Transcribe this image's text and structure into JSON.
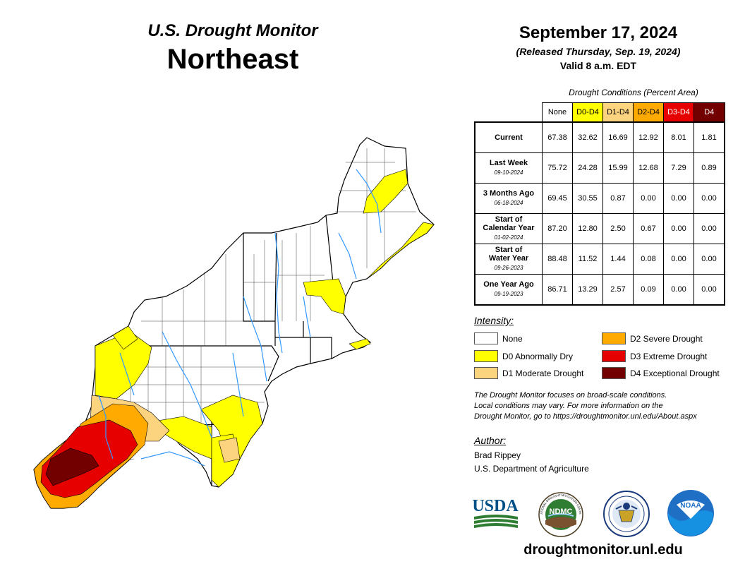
{
  "header": {
    "subtitle": "U.S. Drought Monitor",
    "title": "Northeast"
  },
  "date_block": {
    "date": "September 17, 2024",
    "released": "(Released Thursday, Sep. 19, 2024)",
    "valid": "Valid 8 a.m. EDT"
  },
  "stats_table": {
    "caption": "Drought Conditions (Percent Area)",
    "columns": [
      {
        "label": "None",
        "color": "#ffffff",
        "text_color": "#000000"
      },
      {
        "label": "D0-D4",
        "color": "#ffff00",
        "text_color": "#000000"
      },
      {
        "label": "D1-D4",
        "color": "#fcd37f",
        "text_color": "#000000"
      },
      {
        "label": "D2-D4",
        "color": "#ffaa00",
        "text_color": "#000000"
      },
      {
        "label": "D3-D4",
        "color": "#e60000",
        "text_color": "#ffffff"
      },
      {
        "label": "D4",
        "color": "#730000",
        "text_color": "#ffffff"
      }
    ],
    "rows": [
      {
        "label": "Current",
        "label2": "",
        "date": "",
        "values": [
          "67.38",
          "32.62",
          "16.69",
          "12.92",
          "8.01",
          "1.81"
        ]
      },
      {
        "label": "Last Week",
        "label2": "",
        "date": "09-10-2024",
        "values": [
          "75.72",
          "24.28",
          "15.99",
          "12.68",
          "7.29",
          "0.89"
        ]
      },
      {
        "label": "3 Months Ago",
        "label2": "",
        "date": "06-18-2024",
        "values": [
          "69.45",
          "30.55",
          "0.87",
          "0.00",
          "0.00",
          "0.00"
        ]
      },
      {
        "label": "Start of",
        "label2": "Calendar Year",
        "date": "01-02-2024",
        "values": [
          "87.20",
          "12.80",
          "2.50",
          "0.67",
          "0.00",
          "0.00"
        ]
      },
      {
        "label": "Start of",
        "label2": "Water Year",
        "date": "09-26-2023",
        "values": [
          "88.48",
          "11.52",
          "1.44",
          "0.08",
          "0.00",
          "0.00"
        ]
      },
      {
        "label": "One Year Ago",
        "label2": "",
        "date": "09-19-2023",
        "values": [
          "86.71",
          "13.29",
          "2.57",
          "0.09",
          "0.00",
          "0.00"
        ]
      }
    ]
  },
  "legend": {
    "title": "Intensity:",
    "items": [
      {
        "label": "None",
        "color": "#ffffff"
      },
      {
        "label": "D0 Abnormally Dry",
        "color": "#ffff00"
      },
      {
        "label": "D1 Moderate Drought",
        "color": "#fcd37f"
      },
      {
        "label": "D2 Severe Drought",
        "color": "#ffaa00"
      },
      {
        "label": "D3 Extreme Drought",
        "color": "#e60000"
      },
      {
        "label": "D4 Exceptional Drought",
        "color": "#730000"
      }
    ]
  },
  "note": {
    "line1": "The Drought Monitor focuses on broad-scale conditions.",
    "line2": "Local conditions may vary. For more information on the",
    "line3": "Drought Monitor, go to https://droughtmonitor.unl.edu/About.aspx"
  },
  "author": {
    "label": "Author:",
    "name": "Brad Rippey",
    "org": "U.S. Department of Agriculture"
  },
  "logos": {
    "usda": "USDA",
    "ndmc": "NDMC",
    "ndmc_ring": "NATIONAL DROUGHT MITIGATION CENTER",
    "noaa": "NOAA"
  },
  "footer": {
    "website": "droughtmonitor.unl.edu"
  }
}
